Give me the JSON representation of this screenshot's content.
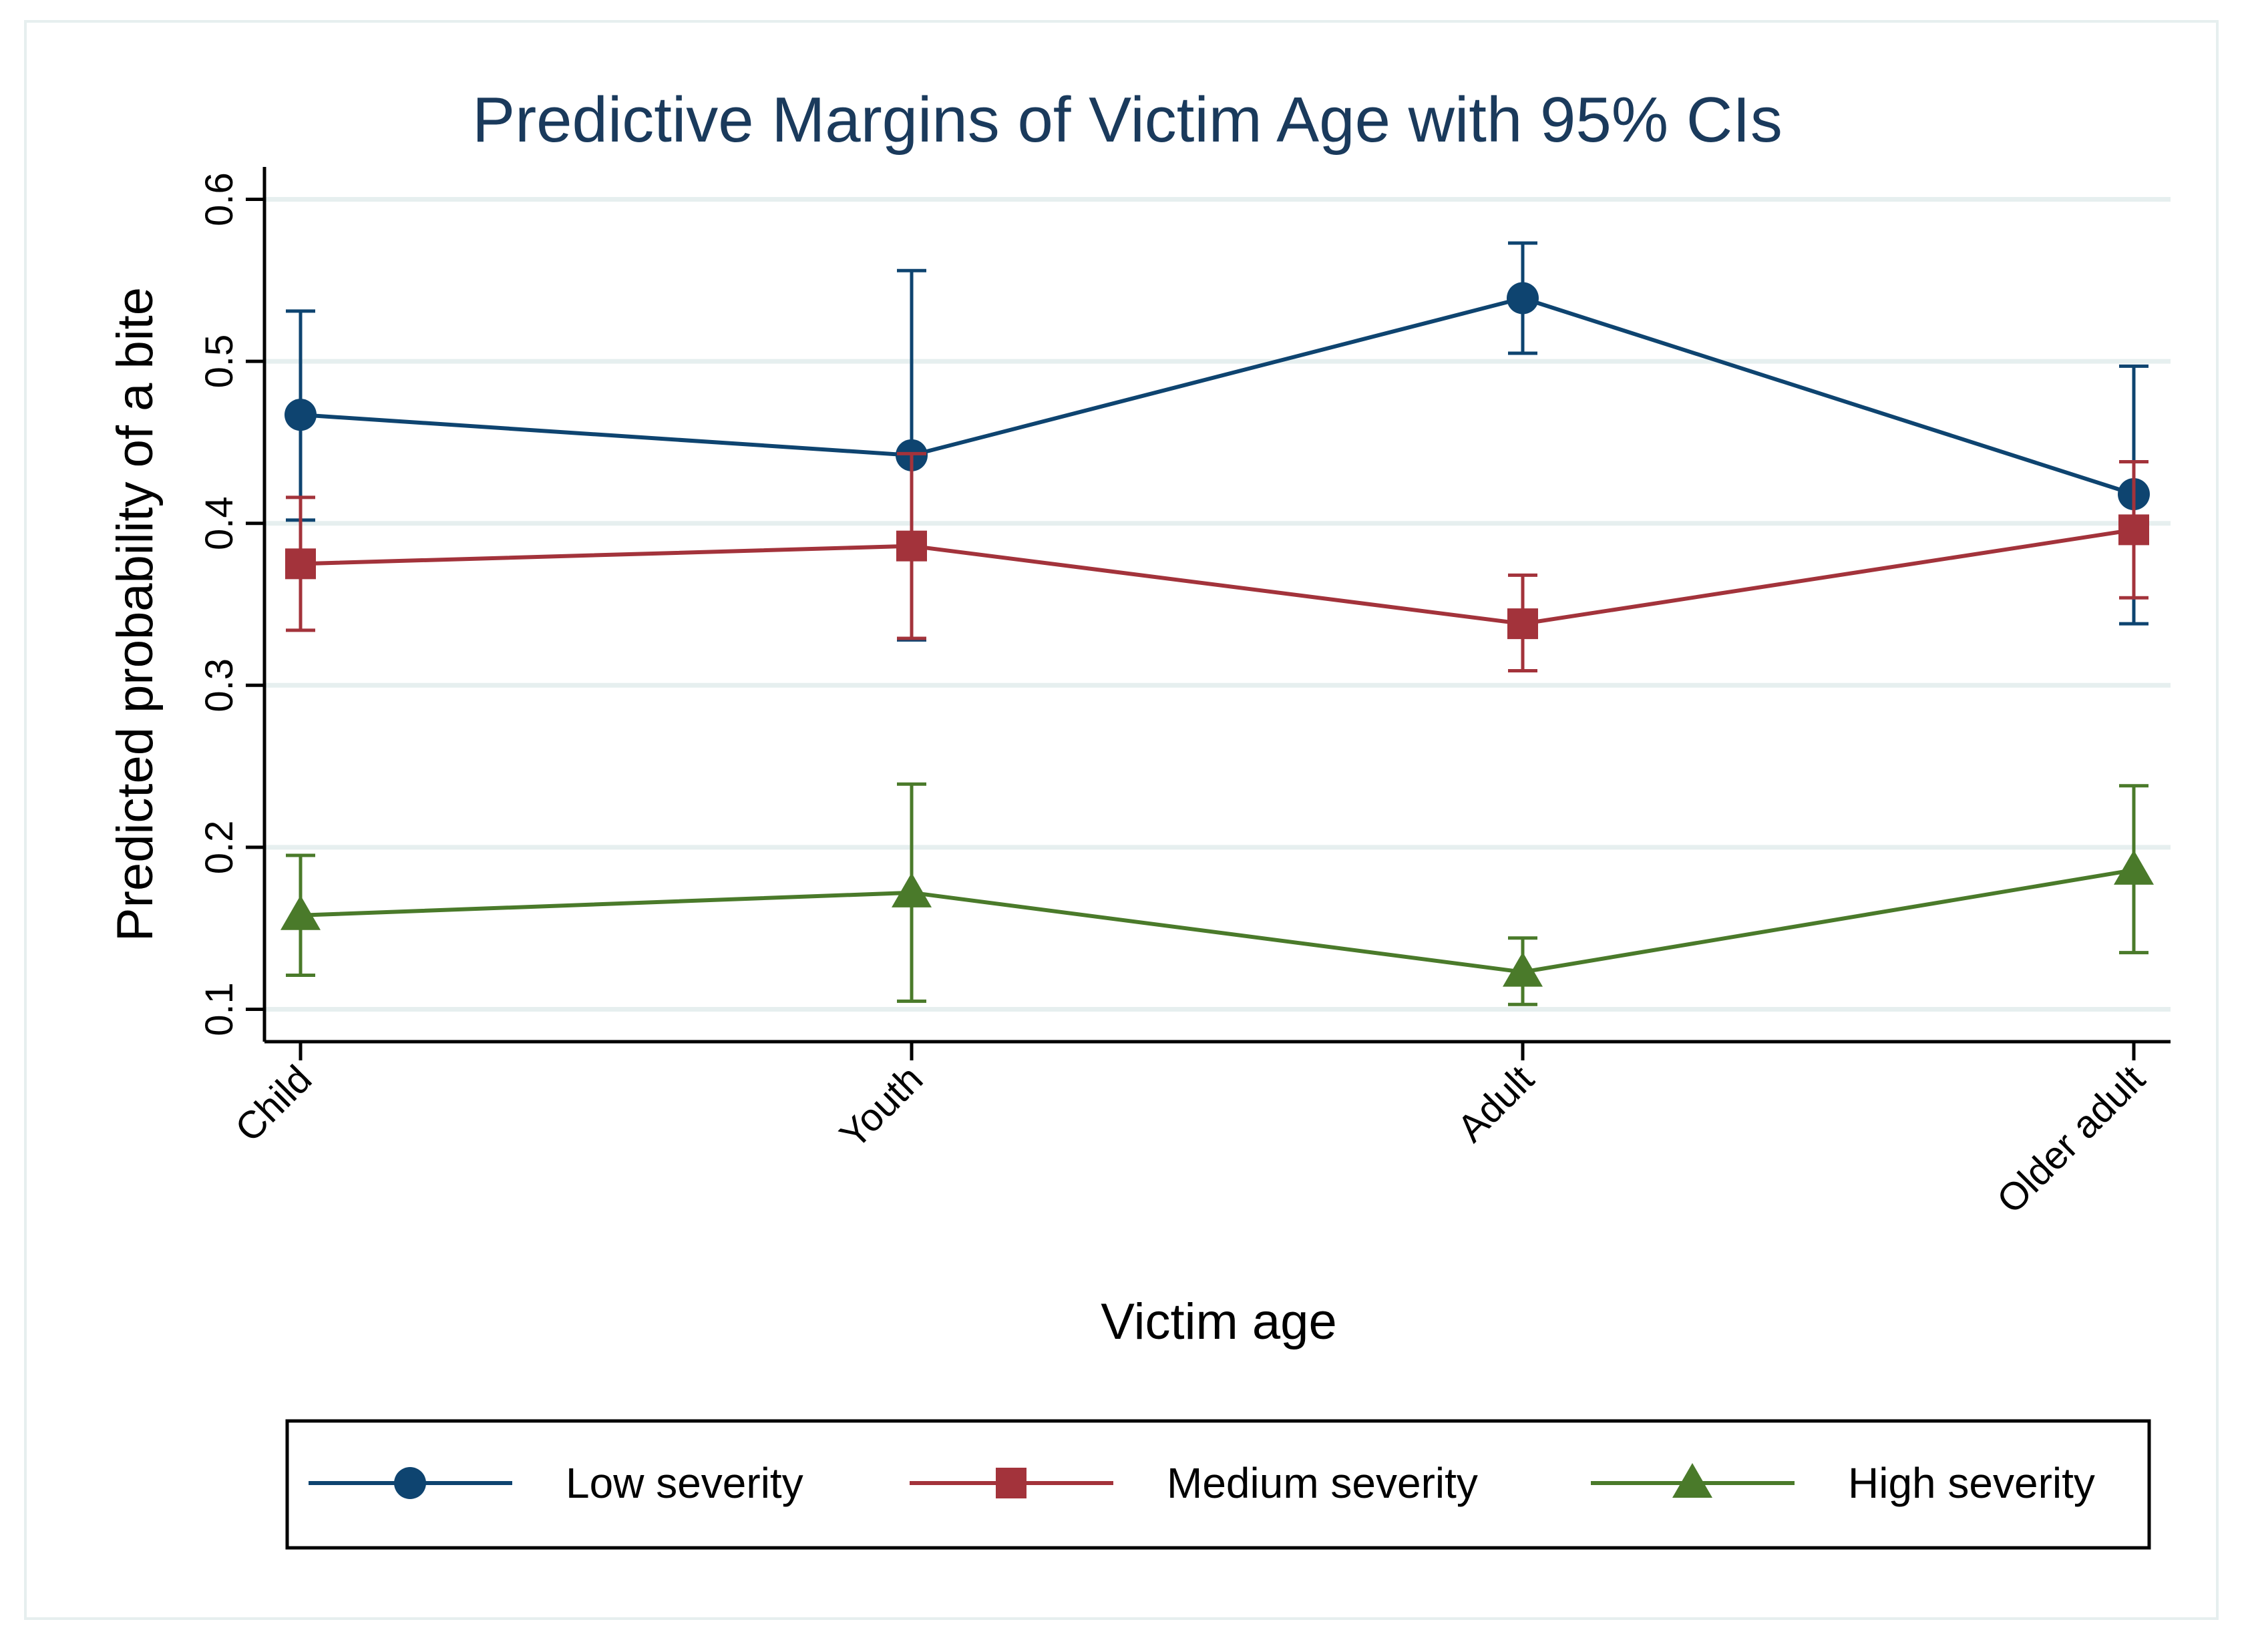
{
  "chart_data": {
    "type": "line",
    "title": "Predictive Margins of Victim Age with 95% CIs",
    "xlabel": "Victim age",
    "ylabel": "Predicted probability of a bite",
    "categories": [
      "Child",
      "Youth",
      "Adult",
      "Older adult"
    ],
    "ylim": [
      0.08,
      0.62
    ],
    "yticks": [
      0.1,
      0.2,
      0.3,
      0.4,
      0.5,
      0.6
    ],
    "ytick_labels": [
      "0.1",
      "0.2",
      "0.3",
      "0.4",
      "0.5",
      "0.6"
    ],
    "grid": true,
    "legend_position": "bottom",
    "series": [
      {
        "name": "Low severity",
        "color": "#0e4470",
        "marker": "circle",
        "values": [
          0.467,
          0.442,
          0.539,
          0.418
        ],
        "ci_low": [
          0.402,
          0.328,
          0.505,
          0.338
        ],
        "ci_high": [
          0.531,
          0.556,
          0.573,
          0.497
        ]
      },
      {
        "name": "Medium severity",
        "color": "#a3333b",
        "marker": "square",
        "values": [
          0.375,
          0.386,
          0.338,
          0.396
        ],
        "ci_low": [
          0.334,
          0.329,
          0.309,
          0.354
        ],
        "ci_high": [
          0.416,
          0.443,
          0.368,
          0.438
        ]
      },
      {
        "name": "High severity",
        "color": "#4a7a2a",
        "marker": "triangle",
        "values": [
          0.158,
          0.172,
          0.123,
          0.186
        ],
        "ci_low": [
          0.121,
          0.105,
          0.103,
          0.135
        ],
        "ci_high": [
          0.195,
          0.239,
          0.144,
          0.238
        ]
      }
    ]
  }
}
